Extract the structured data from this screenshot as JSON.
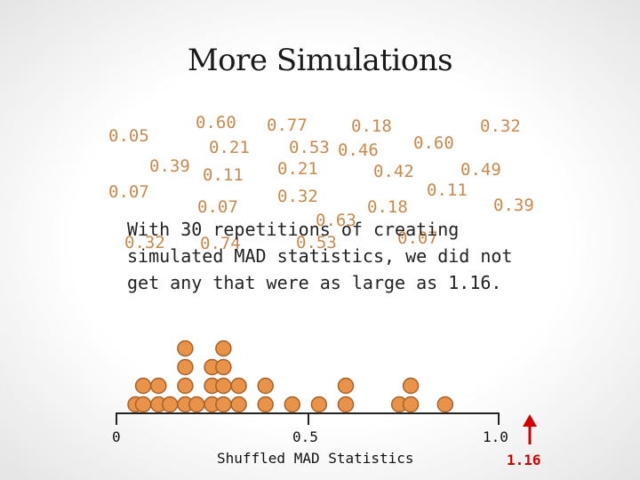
{
  "title": "More Simulations",
  "statement": "With 30 repetitions of creating simulated MAD statistics, we did not get any that were as large as 1.16.",
  "scattered_values": [
    "0.60",
    "0.77",
    "0.18",
    "0.32",
    "0.05",
    "0.21",
    "0.53",
    "0.46",
    "0.60",
    "0.39",
    "0.11",
    "0.21",
    "0.42",
    "0.49",
    "0.07",
    "0.11",
    "0.07",
    "0.32",
    "0.18",
    "0.39",
    "0.63",
    "0.32",
    "0.74",
    "0.53",
    "0.07"
  ],
  "axis": {
    "min": 0,
    "max": 1.0,
    "ticks": [
      "0",
      "0.5",
      "1.0"
    ],
    "label": "Shuffled MAD Statistics"
  },
  "marker_label": "1.16",
  "colors": {
    "dot_fill": "#e8924a",
    "dot_stroke": "#a8622a",
    "number": "#c98a50",
    "marker": "#d40000"
  },
  "chart_data": {
    "type": "scatter",
    "dots_per_bin": [
      {
        "x": 0.05,
        "count": 1
      },
      {
        "x": 0.07,
        "count": 2
      },
      {
        "x": 0.11,
        "count": 2
      },
      {
        "x": 0.14,
        "count": 1
      },
      {
        "x": 0.18,
        "count": 4
      },
      {
        "x": 0.21,
        "count": 1
      },
      {
        "x": 0.25,
        "count": 3
      },
      {
        "x": 0.28,
        "count": 4
      },
      {
        "x": 0.32,
        "count": 2
      },
      {
        "x": 0.39,
        "count": 2
      },
      {
        "x": 0.46,
        "count": 1
      },
      {
        "x": 0.53,
        "count": 1
      },
      {
        "x": 0.6,
        "count": 2
      },
      {
        "x": 0.74,
        "count": 1
      },
      {
        "x": 0.77,
        "count": 2
      },
      {
        "x": 0.86,
        "count": 1
      }
    ],
    "xlabel": "Shuffled MAD Statistics",
    "xlim": [
      0,
      1.0
    ],
    "observed_value": 1.16
  }
}
